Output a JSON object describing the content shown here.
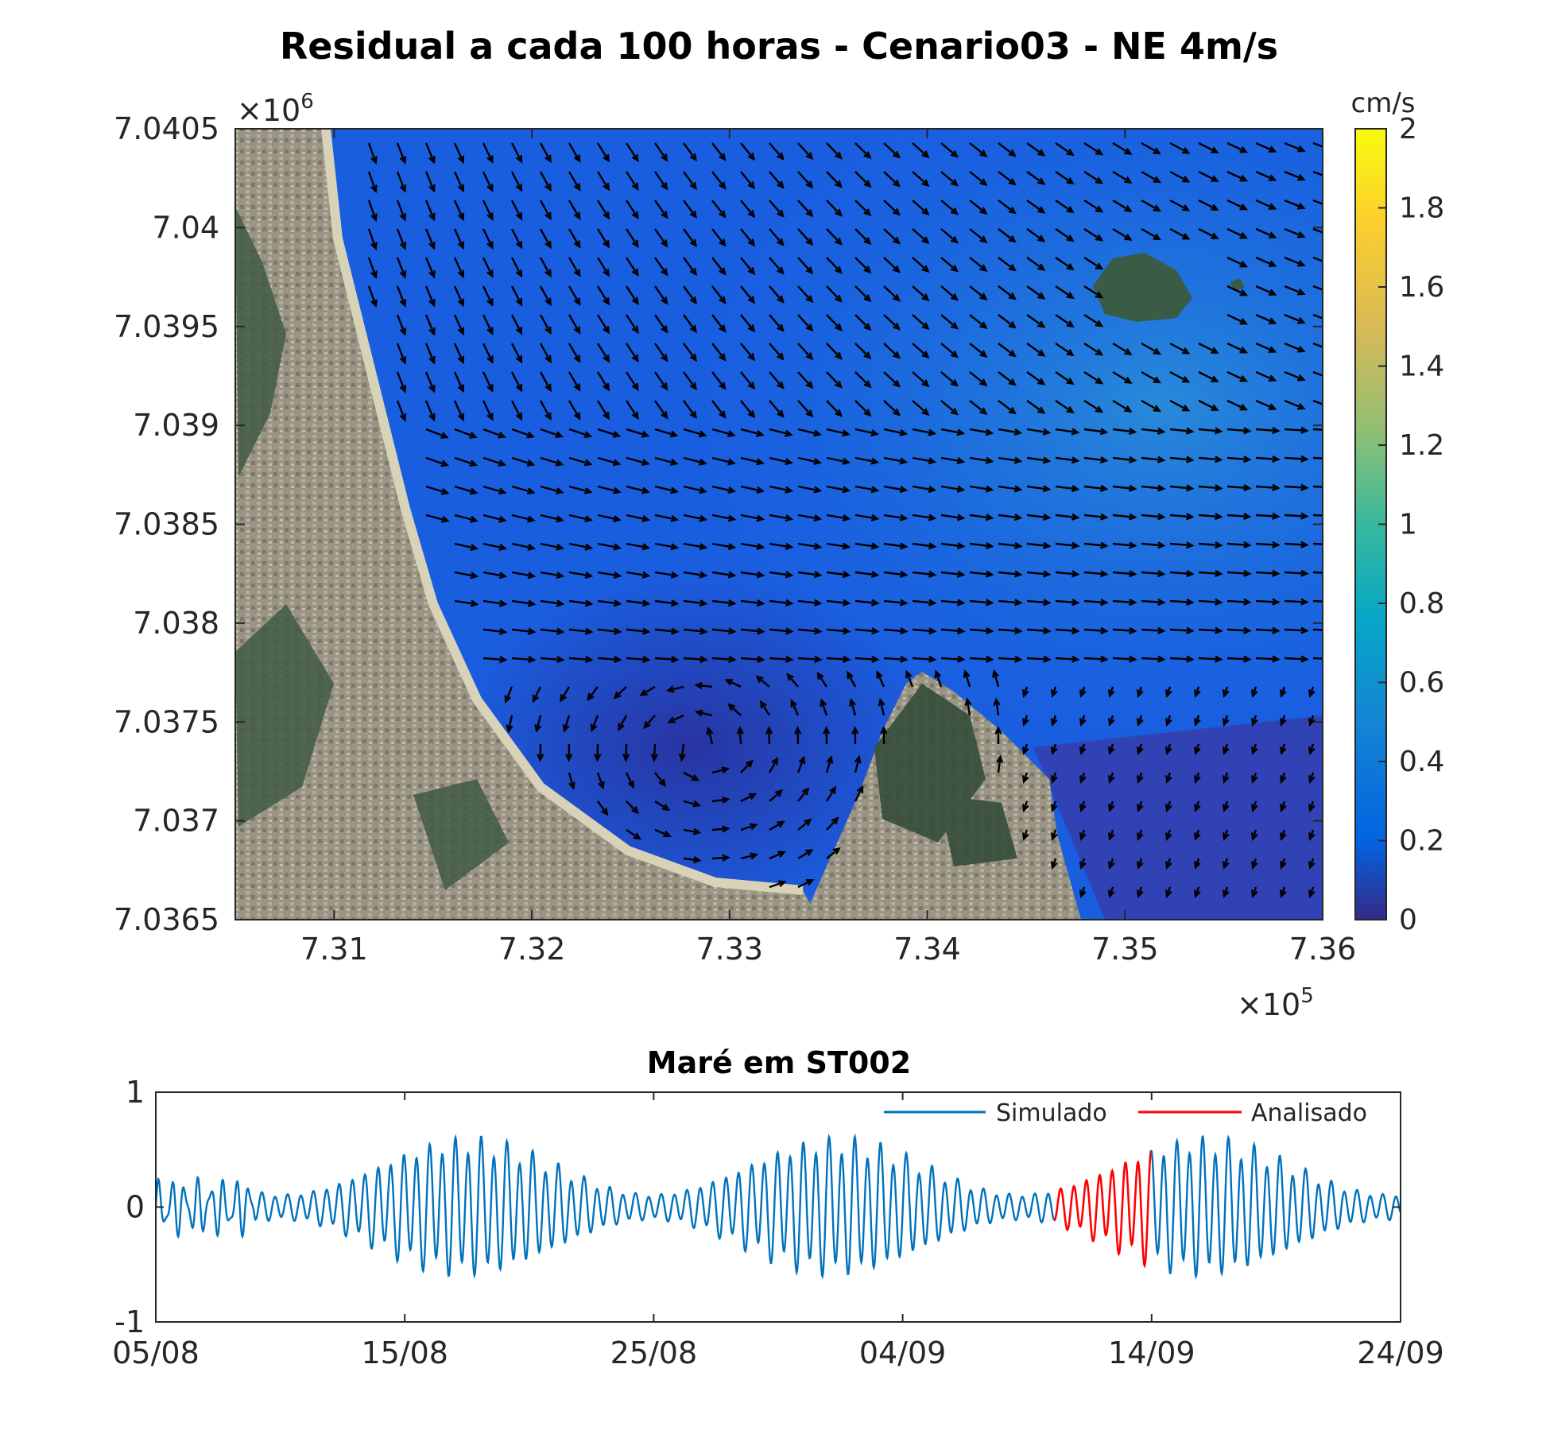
{
  "chart_data": [
    {
      "type": "heatmap",
      "title": "Residual a cada 100 horas  - Cenario03 - NE 4m/s",
      "xlim": [
        7.305,
        7.36
      ],
      "ylim": [
        7.0365,
        7.0405
      ],
      "x_ticks": [
        "7.31",
        "7.32",
        "7.33",
        "7.34",
        "7.35",
        "7.36"
      ],
      "y_ticks": [
        "7.0365",
        "7.037",
        "7.0375",
        "7.038",
        "7.0385",
        "7.039",
        "7.0395",
        "7.04",
        "7.0405"
      ],
      "x_exponent": "×10",
      "x_exponent_power": "5",
      "y_exponent": "×10",
      "y_exponent_power": "6",
      "colorbar": {
        "label": "cm/s",
        "min": 0,
        "max": 2,
        "ticks": [
          "0",
          "0.2",
          "0.4",
          "0.6",
          "0.8",
          "1",
          "1.2",
          "1.4",
          "1.6",
          "1.8",
          "2"
        ],
        "colormap": [
          "#352a87",
          "#0363e1",
          "#1485d4",
          "#06a7c6",
          "#38b99e",
          "#92bf73",
          "#d9ba56",
          "#fcce2e",
          "#f9fb0e"
        ]
      },
      "background": "satellite image of coastal bay with vector field overlay",
      "colors": {
        "water_low": "#2b3fae",
        "water_mid": "#1565df",
        "water_high": "#1c8ad6",
        "land": "#8f8a7a",
        "vegetation": "#3f5a44",
        "arrows": "#000000"
      }
    },
    {
      "type": "line",
      "title": "Maré em ST002",
      "x_ticks": [
        "05/08",
        "15/08",
        "25/08",
        "04/09",
        "14/09",
        "24/09"
      ],
      "x_range_days": [
        0,
        50
      ],
      "ylim": [
        -1,
        1
      ],
      "y_ticks": [
        "-1",
        "0",
        "1"
      ],
      "legend_position": "top-right",
      "series": [
        {
          "name": "Simulado",
          "color": "#0072bd"
        },
        {
          "name": "Analisado",
          "color": "#ff0000",
          "highlight_range": [
            "09/09",
            "13/09"
          ]
        }
      ]
    }
  ]
}
